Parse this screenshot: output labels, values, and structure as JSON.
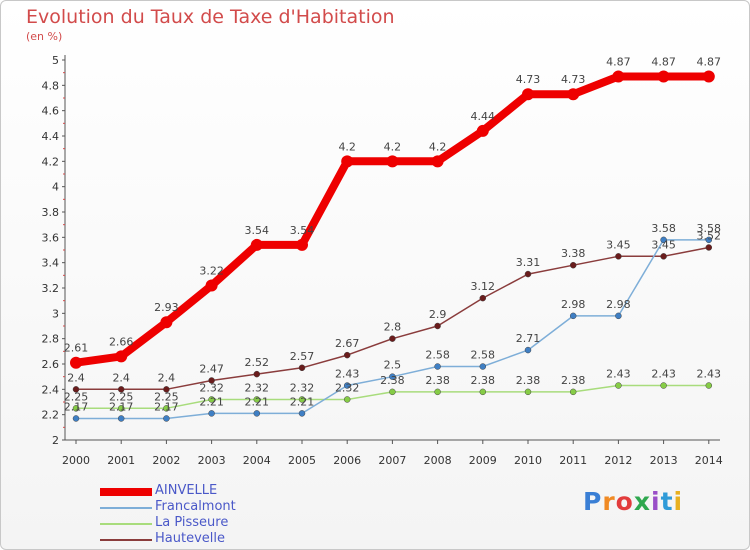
{
  "title": "Evolution du Taux de Taxe d'Habitation",
  "subtitle": "(en %)",
  "logo": {
    "text": "Proxiti",
    "letter_colors": [
      "#3a7fd5",
      "#f08a24",
      "#e23c3c",
      "#2fa84f",
      "#9a4fc8",
      "#2f9bd8",
      "#e8b020"
    ]
  },
  "chart_data": {
    "type": "line",
    "x": [
      2000,
      2001,
      2002,
      2003,
      2004,
      2005,
      2006,
      2007,
      2008,
      2009,
      2010,
      2011,
      2012,
      2013,
      2014
    ],
    "ylim": [
      2,
      5
    ],
    "yticks": [
      "2",
      "2.2",
      "2.4",
      "2.6",
      "2.8",
      "3",
      "3.2",
      "3.4",
      "3.6",
      "3.8",
      "4",
      "4.2",
      "4.4",
      "4.6",
      "4.8",
      "5"
    ],
    "grid": false,
    "legend_position": "bottom-left",
    "series": [
      {
        "name": "AINVELLE",
        "color": "#ee0000",
        "marker_color": "#ee0000",
        "values": [
          2.61,
          2.66,
          2.93,
          3.22,
          3.54,
          3.54,
          4.2,
          4.2,
          4.2,
          4.44,
          4.73,
          4.73,
          4.87,
          4.87,
          4.87
        ],
        "labels": [
          "2.61",
          "2.66",
          "2.93",
          "3.22",
          "3.54",
          "3.54",
          "4.2",
          "4.2",
          "4.2",
          "4.44",
          "4.73",
          "4.73",
          "4.87",
          "4.87",
          "4.87"
        ]
      },
      {
        "name": "Francalmont",
        "color": "#7eaed8",
        "marker_color": "#3f7fc4",
        "values": [
          2.17,
          2.17,
          2.17,
          2.21,
          2.21,
          2.21,
          2.43,
          2.5,
          2.58,
          2.58,
          2.71,
          2.98,
          2.98,
          3.58,
          3.58
        ],
        "labels": [
          "2.17",
          "2.17",
          "2.17",
          "2.21",
          "2.21",
          "2.21",
          "2.43",
          "2.5",
          "2.58",
          "2.58",
          "2.71",
          "2.98",
          "2.98",
          "3.58",
          "3.58"
        ]
      },
      {
        "name": "La Pisseure",
        "color": "#a8dc7c",
        "marker_color": "#86cc46",
        "values": [
          2.25,
          2.25,
          2.25,
          2.32,
          2.32,
          2.32,
          2.32,
          2.38,
          2.38,
          2.38,
          2.38,
          2.38,
          2.43,
          2.43,
          2.43
        ],
        "labels": [
          "2.25",
          "2.25",
          "2.25",
          "2.32",
          "2.32",
          "2.32",
          "2.32",
          "2.38",
          "2.38",
          "2.38",
          "2.38",
          "2.38",
          "2.43",
          "2.43",
          "2.43"
        ]
      },
      {
        "name": "Hautevelle",
        "color": "#8a3c3c",
        "marker_color": "#6a1c1c",
        "values": [
          2.4,
          2.4,
          2.4,
          2.47,
          2.52,
          2.57,
          2.67,
          2.8,
          2.9,
          3.12,
          3.31,
          3.38,
          3.45,
          3.45,
          3.52
        ],
        "labels": [
          "2.4",
          "2.4",
          "2.4",
          "2.47",
          "2.52",
          "2.57",
          "2.67",
          "2.8",
          "2.9",
          "3.12",
          "3.31",
          "3.38",
          "3.45",
          "3.45",
          "3.52"
        ]
      }
    ]
  }
}
